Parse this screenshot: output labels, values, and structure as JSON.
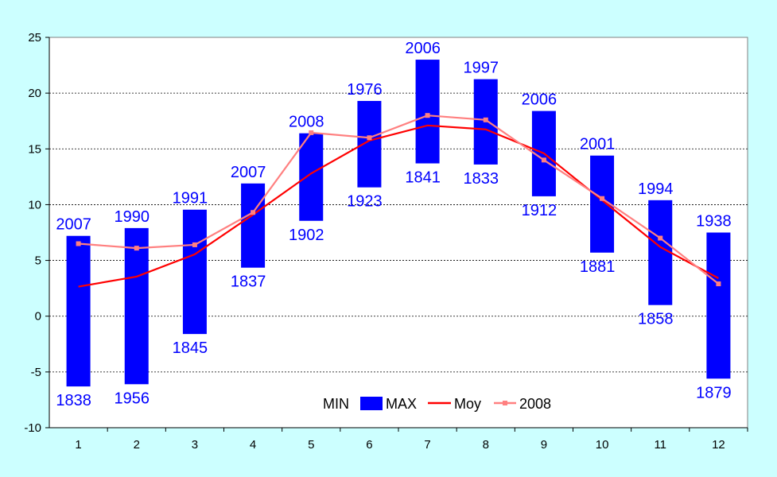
{
  "chart_data": {
    "type": "bar",
    "categories": [
      "1",
      "2",
      "3",
      "4",
      "5",
      "6",
      "7",
      "8",
      "9",
      "10",
      "11",
      "12"
    ],
    "ylim": [
      -10,
      25
    ],
    "yticks": [
      -10,
      -5,
      0,
      5,
      10,
      15,
      20,
      25
    ],
    "grid": true,
    "legend_placement": "bottom-center",
    "range_bars": {
      "name_low": "MIN",
      "name_high": "MAX",
      "color": "#0000ff",
      "min": [
        -6.3,
        -6.1,
        -1.6,
        4.35,
        8.55,
        11.55,
        13.7,
        13.6,
        10.75,
        5.7,
        1.0,
        -5.6
      ],
      "max": [
        7.2,
        7.9,
        9.55,
        11.9,
        16.4,
        19.3,
        23.0,
        21.25,
        18.4,
        14.4,
        10.4,
        7.5
      ],
      "min_year": [
        "1838",
        "1956",
        "1845",
        "1837",
        "1902",
        "1923",
        "1841",
        "1833",
        "1912",
        "1881",
        "1858",
        "1879"
      ],
      "max_year": [
        "2007",
        "1990",
        "1991",
        "2007",
        "2008",
        "1976",
        "2006",
        "1997",
        "2006",
        "2001",
        "1994",
        "1938"
      ]
    },
    "series": [
      {
        "name": "Moy",
        "type": "line",
        "color": "#ff0000",
        "values": [
          2.65,
          3.55,
          5.55,
          9.1,
          12.8,
          15.75,
          17.1,
          16.75,
          14.6,
          10.4,
          6.2,
          3.4
        ]
      },
      {
        "name": "2008",
        "type": "line",
        "color": "#ff8080",
        "marker": "square",
        "values": [
          6.5,
          6.1,
          6.4,
          9.3,
          16.45,
          16.0,
          18.0,
          17.6,
          14.0,
          10.55,
          7.0,
          2.9
        ]
      }
    ]
  }
}
